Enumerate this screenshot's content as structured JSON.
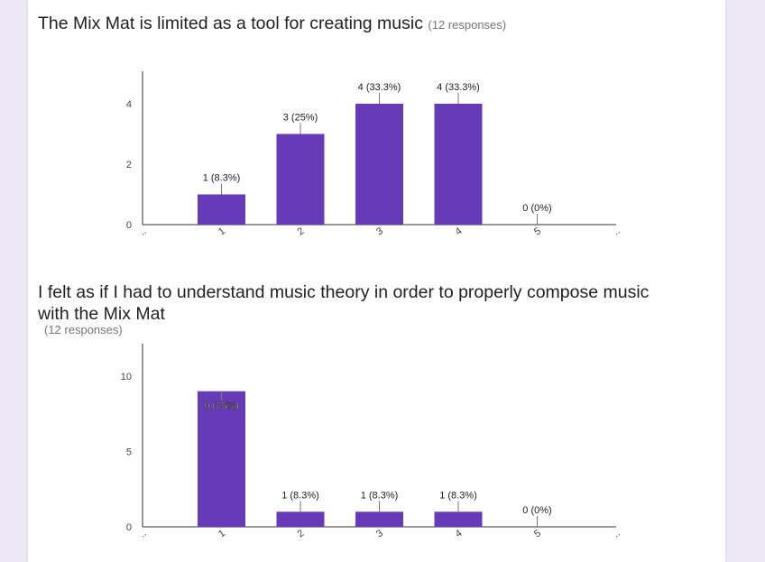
{
  "colors": {
    "bar": "#673ab7",
    "page_bg": "#ede7f6",
    "card_bg": "#ffffff"
  },
  "questions": [
    {
      "title": "The Mix Mat is limited as a tool for creating music",
      "responses": "(12 responses)"
    },
    {
      "title": "I felt as if I had to understand music theory in order to properly compose music with the Mix Mat",
      "responses": "(12 responses)"
    }
  ],
  "chart_data": [
    {
      "type": "bar",
      "categories": [
        "..",
        "1",
        "2",
        "3",
        "4",
        "5",
        ".."
      ],
      "values": [
        null,
        1,
        3,
        4,
        4,
        0,
        null
      ],
      "data_labels": [
        "",
        "1 (8.3%)",
        "3 (25%)",
        "4 (33.3%)",
        "4 (33.3%)",
        "0 (0%)",
        ""
      ],
      "yticks": [
        0,
        2,
        4
      ],
      "ylim": [
        0,
        4
      ]
    },
    {
      "type": "bar",
      "categories": [
        "..",
        "1",
        "2",
        "3",
        "4",
        "5",
        ".."
      ],
      "values": [
        null,
        9,
        1,
        1,
        1,
        0,
        null
      ],
      "data_labels": [
        "",
        "9 (75%)",
        "1 (8.3%)",
        "1 (8.3%)",
        "1 (8.3%)",
        "0 (0%)",
        ""
      ],
      "yticks": [
        0,
        5,
        10
      ],
      "ylim": [
        0,
        10
      ]
    }
  ]
}
